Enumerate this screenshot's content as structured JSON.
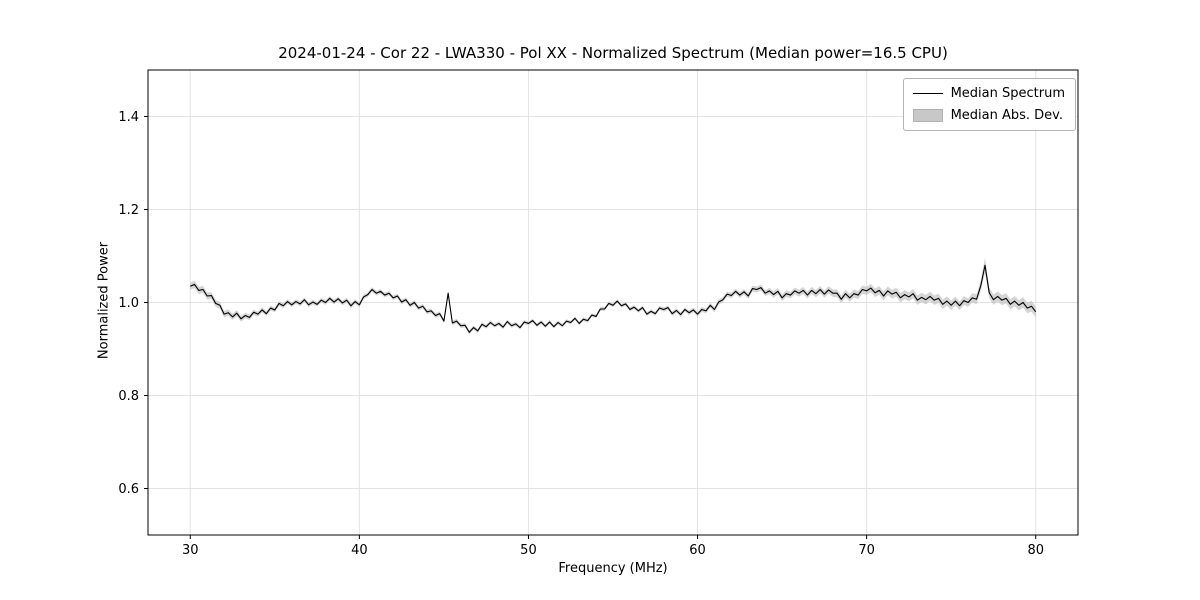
{
  "figure": {
    "background": "#ffffff"
  },
  "chart_data": {
    "type": "line",
    "title": "2024-01-24 - Cor 22 - LWA330 - Pol XX - Normalized Spectrum (Median power=16.5 CPU)",
    "xlabel": "Frequency (MHz)",
    "ylabel": "Normalized Power",
    "xlim": [
      27.5,
      82.5
    ],
    "ylim": [
      0.5,
      1.5
    ],
    "grid": true,
    "legend_position": "upper right",
    "xticks": {
      "values": [
        30,
        40,
        50,
        60,
        70,
        80
      ],
      "labels": [
        "30",
        "40",
        "50",
        "60",
        "70",
        "80"
      ]
    },
    "yticks": {
      "values": [
        0.6,
        0.8,
        1.0,
        1.2,
        1.4
      ],
      "labels": [
        "0.6",
        "0.8",
        "1.0",
        "1.2",
        "1.4"
      ]
    },
    "colors": {
      "line": "#000000",
      "band": "#bfbfbf",
      "grid": "#e3e3e3",
      "axes": "#000000",
      "tick": "#000000"
    },
    "legend": {
      "entries": [
        {
          "label": "Median Spectrum",
          "type": "line",
          "color": "#000000"
        },
        {
          "label": "Median Abs. Dev.",
          "type": "patch",
          "color": "#c8c8c8"
        }
      ]
    },
    "series": [
      {
        "name": "Median Spectrum",
        "x_start": 30.0,
        "x_step": 0.25,
        "values": [
          1.035,
          1.039,
          1.026,
          1.028,
          1.014,
          1.015,
          0.998,
          0.994,
          0.975,
          0.978,
          0.969,
          0.977,
          0.965,
          0.972,
          0.968,
          0.979,
          0.975,
          0.984,
          0.976,
          0.988,
          0.984,
          0.998,
          0.993,
          1.002,
          0.995,
          1.002,
          0.997,
          1.006,
          0.995,
          1.001,
          0.996,
          1.005,
          1.0,
          1.009,
          1.001,
          1.008,
          0.999,
          1.005,
          0.993,
          1.002,
          0.995,
          1.012,
          1.017,
          1.028,
          1.02,
          1.024,
          1.016,
          1.02,
          1.01,
          1.014,
          1.001,
          1.006,
          0.994,
          1.0,
          0.988,
          0.992,
          0.98,
          0.982,
          0.972,
          0.976,
          0.96,
          1.02,
          0.956,
          0.96,
          0.95,
          0.951,
          0.936,
          0.946,
          0.939,
          0.953,
          0.948,
          0.957,
          0.95,
          0.955,
          0.947,
          0.959,
          0.95,
          0.954,
          0.946,
          0.958,
          0.955,
          0.961,
          0.951,
          0.958,
          0.949,
          0.958,
          0.948,
          0.957,
          0.95,
          0.96,
          0.957,
          0.966,
          0.955,
          0.964,
          0.961,
          0.973,
          0.97,
          0.986,
          0.986,
          0.998,
          0.994,
          1.003,
          0.993,
          0.997,
          0.985,
          0.99,
          0.982,
          0.989,
          0.975,
          0.981,
          0.976,
          0.988,
          0.985,
          0.989,
          0.976,
          0.983,
          0.974,
          0.985,
          0.978,
          0.984,
          0.975,
          0.985,
          0.982,
          0.994,
          0.985,
          1.001,
          1.006,
          1.018,
          1.015,
          1.024,
          1.016,
          1.023,
          1.014,
          1.03,
          1.028,
          1.032,
          1.02,
          1.025,
          1.017,
          1.024,
          1.01,
          1.019,
          1.016,
          1.025,
          1.02,
          1.026,
          1.016,
          1.026,
          1.019,
          1.028,
          1.018,
          1.027,
          1.02,
          1.02,
          1.007,
          1.019,
          1.01,
          1.019,
          1.016,
          1.028,
          1.025,
          1.031,
          1.021,
          1.026,
          1.014,
          1.025,
          1.018,
          1.022,
          1.01,
          1.017,
          1.012,
          1.019,
          1.005,
          1.011,
          1.006,
          1.013,
          1.005,
          1.009,
          0.996,
          1.003,
          0.994,
          1.003,
          0.993,
          1.004,
          1.0,
          1.01,
          1.007,
          1.036,
          1.08,
          1.021,
          1.006,
          1.013,
          1.005,
          1.009,
          0.996,
          1.003,
          0.994,
          1.0,
          0.988,
          0.992,
          0.98
        ]
      }
    ],
    "band": {
      "name": "Median Abs. Dev.",
      "anchors_x": [
        30.0,
        32.0,
        35.0,
        40.0,
        45.0,
        50.0,
        55.0,
        60.0,
        65.0,
        68.0,
        70.0,
        73.0,
        75.0,
        76.0,
        76.8,
        77.0,
        77.3,
        78.0,
        79.0,
        80.0
      ],
      "halfwidth": [
        0.008,
        0.007,
        0.005,
        0.005,
        0.005,
        0.004,
        0.004,
        0.005,
        0.007,
        0.008,
        0.009,
        0.01,
        0.01,
        0.009,
        0.012,
        0.016,
        0.011,
        0.011,
        0.011,
        0.012
      ]
    }
  }
}
